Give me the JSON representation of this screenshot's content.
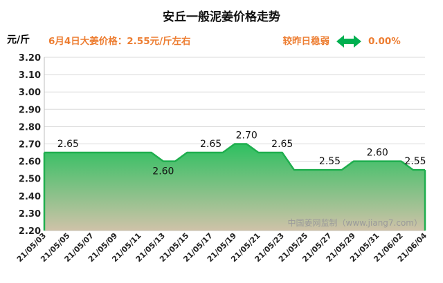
{
  "header": {
    "title": "安丘一般泥姜价格走势",
    "price_note": "6月4日大姜价格：2.55元/斤左右",
    "change_label": "较昨日稳弱",
    "change_value": "0.00%",
    "change_icon": "double-arrow-icon"
  },
  "watermark": "中国姜网监制（www.jiang7.com）",
  "colors": {
    "accent_orange": "#ED7D31",
    "series_line": "#1FAE4E",
    "fill_top": "#2DC060",
    "fill_bottom": "#CFC2A8",
    "arrow_green": "#00B050"
  },
  "chart_data": {
    "type": "area",
    "ylabel": "元/斤",
    "xlabel": "",
    "ylim": [
      2.2,
      3.2
    ],
    "yticks": [
      "3.20",
      "3.10",
      "3.00",
      "2.90",
      "2.80",
      "2.70",
      "2.60",
      "2.50",
      "2.40",
      "2.30",
      "2.20"
    ],
    "grid": true,
    "legend": "none",
    "x": [
      "21/05/03",
      "21/05/04",
      "21/05/05",
      "21/05/06",
      "21/05/07",
      "21/05/08",
      "21/05/09",
      "21/05/10",
      "21/05/11",
      "21/05/12",
      "21/05/13",
      "21/05/14",
      "21/05/15",
      "21/05/16",
      "21/05/17",
      "21/05/18",
      "21/05/19",
      "21/05/20",
      "21/05/21",
      "21/05/22",
      "21/05/23",
      "21/05/24",
      "21/05/25",
      "21/05/26",
      "21/05/27",
      "21/05/28",
      "21/05/29",
      "21/05/30",
      "21/05/31",
      "21/06/01",
      "21/06/02",
      "21/06/03",
      "21/06/04"
    ],
    "x_tick_labels": [
      "21/05/03",
      "21/05/05",
      "21/05/07",
      "21/05/09",
      "21/05/11",
      "21/05/13",
      "21/05/15",
      "21/05/17",
      "21/05/19",
      "21/05/21",
      "21/05/23",
      "21/05/25",
      "21/05/27",
      "21/05/29",
      "21/05/31",
      "21/06/02",
      "21/06/04"
    ],
    "series": [
      {
        "values": [
          2.65,
          2.65,
          2.65,
          2.65,
          2.65,
          2.65,
          2.65,
          2.65,
          2.65,
          2.65,
          2.6,
          2.6,
          2.65,
          2.65,
          2.65,
          2.65,
          2.7,
          2.7,
          2.65,
          2.65,
          2.65,
          2.55,
          2.55,
          2.55,
          2.55,
          2.55,
          2.6,
          2.6,
          2.6,
          2.6,
          2.6,
          2.55,
          2.55
        ]
      }
    ],
    "data_labels": [
      {
        "index": 2,
        "text": "2.65",
        "pos": "above"
      },
      {
        "index": 10,
        "text": "2.60",
        "pos": "below"
      },
      {
        "index": 14,
        "text": "2.65",
        "pos": "above"
      },
      {
        "index": 17,
        "text": "2.70",
        "pos": "above"
      },
      {
        "index": 20,
        "text": "2.65",
        "pos": "above"
      },
      {
        "index": 24,
        "text": "2.55",
        "pos": "above"
      },
      {
        "index": 28,
        "text": "2.60",
        "pos": "above"
      },
      {
        "index": 32,
        "text": "2.55",
        "pos": "above"
      }
    ]
  }
}
